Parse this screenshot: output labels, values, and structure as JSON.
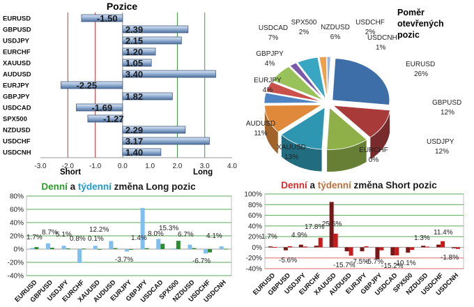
{
  "positions_chart": {
    "title": "Pozice",
    "short_label": "Short",
    "long_label": "Long"
  },
  "pie_chart": {
    "title_lines": [
      "Poměr",
      "otevřených",
      "pozic"
    ]
  },
  "long_chart": {
    "title_parts": [
      "Denní",
      " a ",
      "týdenní",
      " změna Long pozic"
    ]
  },
  "short_chart": {
    "title_parts": [
      "Denní",
      " a ",
      "týdenní",
      " změna Short pozic"
    ]
  },
  "colors": {
    "bar_blue": "#7a9cc6",
    "green_line": "#3a9a3a",
    "red_line": "#c43a3a",
    "title_green": "#2a9a2a",
    "title_blue": "#1f9ad6",
    "title_red": "#d42a2a",
    "title_orange": "#c0703a"
  },
  "chart_data": [
    {
      "type": "bar",
      "orientation": "horizontal",
      "title": "Pozice",
      "categories": [
        "EURUSD",
        "GBPUSD",
        "USDJPY",
        "EURCHF",
        "XAUUSD",
        "AUDUSD",
        "EURJPY",
        "GBPJPY",
        "USDCAD",
        "SPX500",
        "NZDUSD",
        "USDCHF",
        "USDCNH"
      ],
      "values": [
        -1.5,
        2.39,
        2.15,
        1.2,
        1.05,
        3.4,
        -2.25,
        1.82,
        -1.69,
        -1.27,
        2.29,
        3.17,
        1.4
      ],
      "value_labels": [
        "-1.50",
        "2.39",
        "2.15",
        "1.20",
        "1.05",
        "3.40",
        "-2.25",
        "1.82",
        "-1.69",
        "-1.27",
        "2.29",
        "3.17",
        "1.40"
      ],
      "xlim": [
        -3.0,
        4.0
      ],
      "xticks": [
        "-3.0",
        "-2.0",
        "-1.0",
        "0.0",
        "1.0",
        "2.0",
        "3.0",
        "4.0"
      ],
      "annotations": [
        "Short",
        "Long"
      ]
    },
    {
      "type": "pie",
      "title": "Poměr otevřených pozic",
      "labels": [
        "EURUSD",
        "GBPUSD",
        "USDJPY",
        "EURCHF",
        "XAUUSD",
        "AUDUSD",
        "EURJPY",
        "GBPJPY",
        "USDCAD",
        "SPX500",
        "NZDUSD",
        "USDCHF",
        "USDCNH"
      ],
      "values": [
        26,
        12,
        12,
        0,
        13,
        11,
        4,
        4,
        7,
        2,
        6,
        2,
        1
      ],
      "value_labels": [
        "26%",
        "12%",
        "12%",
        "0%",
        "13%",
        "11%",
        "4%",
        "4%",
        "7%",
        "2%",
        "6%",
        "2%",
        "1%"
      ],
      "colors": [
        "#3d6ea8",
        "#a83a3a",
        "#8fb048",
        "#6a4f96",
        "#2f96b2",
        "#e0893a",
        "#4f84c4",
        "#c9504b",
        "#9ac25a",
        "#7a5aa8",
        "#3aa7c2",
        "#f0a04a",
        "#9ab5d8"
      ]
    },
    {
      "type": "bar",
      "title": "Denní a týdenní změna Long pozic",
      "categories": [
        "EURUSD",
        "GBPUSD",
        "USDJPY",
        "EURCHF",
        "XAUUSD",
        "AUDUSD",
        "EURJPY",
        "GBPJPY",
        "USDCAD",
        "SPX500",
        "NZDUSD",
        "USDCHF",
        "USDCNH"
      ],
      "series": [
        {
          "name": "Denní",
          "color": "#2e8b2e",
          "values": [
            3.0,
            2.0,
            1.0,
            0.8,
            0.1,
            1.5,
            -0.5,
            1.4,
            8.0,
            12.5,
            1.5,
            -5.0,
            0.5
          ]
        },
        {
          "name": "týdenní",
          "color": "#7fbff0",
          "values": [
            1.7,
            8.7,
            5.1,
            -21.0,
            5.0,
            12.2,
            -3.7,
            62.0,
            15.3,
            1.0,
            6.7,
            -6.7,
            4.1
          ]
        }
      ],
      "data_labels": [
        "1.7%",
        "8.7%",
        "5.1%",
        "0.8%",
        "0.1%",
        "12.2%",
        "-3.7%",
        "1.4%",
        "8.0%",
        "15.3%",
        "6.7%",
        "-6.7%",
        "4.1%"
      ],
      "ylim": [
        -40,
        80
      ],
      "yticks": [
        "80%",
        "60%",
        "40%",
        "20%",
        "0%",
        "-20%",
        "-40%"
      ]
    },
    {
      "type": "bar",
      "title": "Denní a týdenní změna Short pozic",
      "categories": [
        "EURUSD",
        "GBPUSD",
        "USDJPY",
        "EURCHF",
        "XAUUSD",
        "AUDUSD",
        "EURJPY",
        "GBPJPY",
        "USDCAD",
        "SPX500",
        "NZDUSD",
        "USDCHF",
        "USDCNH"
      ],
      "series": [
        {
          "name": "Denní",
          "color": "#cc1a1a",
          "values": [
            0.5,
            2.0,
            1.5,
            17.8,
            25.6,
            -15.7,
            2.0,
            -5.7,
            -15.2,
            -5.0,
            1.3,
            11.4,
            -3.0
          ]
        },
        {
          "name": "týdenní",
          "color": "#7a1818",
          "values": [
            1.7,
            -5.6,
            4.9,
            3.0,
            85.0,
            -7.5,
            -7.5,
            -22.0,
            -15.2,
            -10.1,
            3.0,
            5.0,
            -1.8
          ]
        }
      ],
      "data_labels": [
        "1.7%",
        "-5.6%",
        "4.9%",
        "17.8%",
        "25.6%",
        "-15.7%",
        "-7.5%",
        "-5.7%",
        "-15.2%",
        "-10.1%",
        "1.3%",
        "11.4%",
        "-1.8%"
      ],
      "ylim": [
        -40,
        100
      ],
      "yticks": [
        "100%",
        "80%",
        "60%",
        "40%",
        "20%",
        "0%",
        "-20%",
        "-40%"
      ]
    }
  ]
}
